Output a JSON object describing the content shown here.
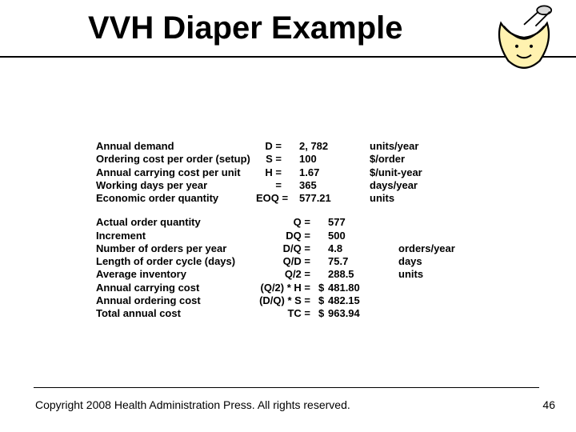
{
  "title": "VVH Diaper Example",
  "block1": [
    {
      "label": "Annual demand",
      "sym": "D =",
      "cur": "",
      "val": "2, 782",
      "unit": "units/year"
    },
    {
      "label": "Ordering cost per order (setup)",
      "sym": "S =",
      "cur": "",
      "val": "100",
      "unit": "$/order"
    },
    {
      "label": "Annual carrying cost per unit",
      "sym": "H =",
      "cur": "",
      "val": "1.67",
      "unit": "$/unit-year"
    },
    {
      "label": "Working days per year",
      "sym": "  =",
      "cur": "",
      "val": "365",
      "unit": "days/year"
    },
    {
      "label": "Economic order quantity",
      "sym": "EOQ =",
      "cur": "",
      "val": "577.21",
      "unit": "units"
    }
  ],
  "block2": [
    {
      "label": "Actual order quantity",
      "sym": "Q =",
      "cur": "",
      "val": "577",
      "unit": ""
    },
    {
      "label": "Increment",
      "sym": "DQ =",
      "cur": "",
      "val": "500",
      "unit": ""
    },
    {
      "label": "Number of orders per year",
      "sym": "D/Q =",
      "cur": "",
      "val": "4.8",
      "unit": "orders/year"
    },
    {
      "label": "Length of order cycle (days)",
      "sym": "Q/D =",
      "cur": "",
      "val": "75.7",
      "unit": "days"
    },
    {
      "label": "Average inventory",
      "sym": "Q/2 =",
      "cur": "",
      "val": "288.5",
      "unit": "units"
    },
    {
      "label": "Annual carrying cost",
      "sym": "(Q/2) * H =",
      "cur": "$",
      "val": "481.80",
      "unit": ""
    },
    {
      "label": "Annual ordering cost",
      "sym": "(D/Q) * S =",
      "cur": "$",
      "val": "482.15",
      "unit": ""
    },
    {
      "label": "Total annual cost",
      "sym": "TC =",
      "cur": "$",
      "val": "963.94",
      "unit": ""
    }
  ],
  "footer": "Copyright 2008 Health Administration Press. All rights reserved.",
  "page": "46",
  "symwidth": {
    "b1": 42,
    "b2": 78
  }
}
